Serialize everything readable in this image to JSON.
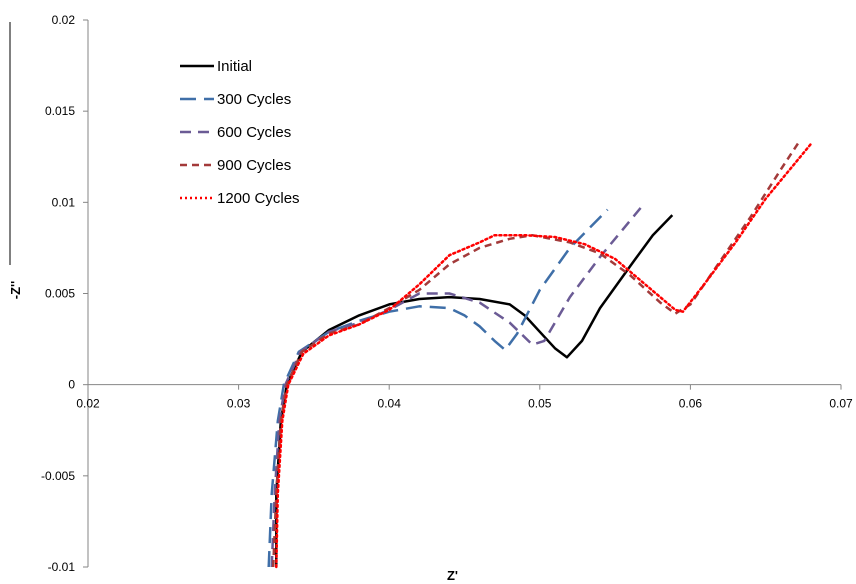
{
  "chart_data": {
    "type": "line",
    "xlabel": "Z'",
    "ylabel": "-Z''",
    "xlim": [
      0.02,
      0.07
    ],
    "ylim": [
      -0.01,
      0.02
    ],
    "x_ticks": [
      "0.02",
      "0.03",
      "0.04",
      "0.05",
      "0.06",
      "0.07"
    ],
    "y_ticks": [
      "0.02",
      "0.015",
      "0.01",
      "0.005",
      "0",
      "-0.005",
      "-0.01"
    ],
    "grid": false,
    "legend_position": "top-left",
    "series": [
      {
        "name": "Initial",
        "color": "#000000",
        "dash": "solid",
        "points": [
          [
            0.0325,
            -0.01
          ],
          [
            0.0325,
            -0.006
          ],
          [
            0.0328,
            -0.002
          ],
          [
            0.0332,
            0.0
          ],
          [
            0.0342,
            0.0018
          ],
          [
            0.036,
            0.003
          ],
          [
            0.038,
            0.0038
          ],
          [
            0.04,
            0.0044
          ],
          [
            0.042,
            0.0047
          ],
          [
            0.044,
            0.0048
          ],
          [
            0.046,
            0.0047
          ],
          [
            0.048,
            0.0044
          ],
          [
            0.049,
            0.0038
          ],
          [
            0.05,
            0.0029
          ],
          [
            0.051,
            0.002
          ],
          [
            0.0518,
            0.0015
          ],
          [
            0.0528,
            0.0024
          ],
          [
            0.054,
            0.0042
          ],
          [
            0.056,
            0.0065
          ],
          [
            0.0575,
            0.0082
          ],
          [
            0.0588,
            0.0093
          ]
        ]
      },
      {
        "name": "300 Cycles",
        "color": "#3f6fa8",
        "dash": "long",
        "points": [
          [
            0.032,
            -0.01
          ],
          [
            0.0322,
            -0.006
          ],
          [
            0.0326,
            -0.002
          ],
          [
            0.033,
            0.0
          ],
          [
            0.034,
            0.0018
          ],
          [
            0.036,
            0.0029
          ],
          [
            0.038,
            0.0035
          ],
          [
            0.04,
            0.004
          ],
          [
            0.042,
            0.0043
          ],
          [
            0.044,
            0.0042
          ],
          [
            0.045,
            0.0038
          ],
          [
            0.046,
            0.0032
          ],
          [
            0.047,
            0.0024
          ],
          [
            0.0477,
            0.0019
          ],
          [
            0.0485,
            0.0028
          ],
          [
            0.05,
            0.0052
          ],
          [
            0.052,
            0.0075
          ],
          [
            0.0545,
            0.0096
          ]
        ]
      },
      {
        "name": "600 Cycles",
        "color": "#6b5b95",
        "dash": "medium",
        "points": [
          [
            0.0322,
            -0.01
          ],
          [
            0.0324,
            -0.006
          ],
          [
            0.0327,
            -0.002
          ],
          [
            0.0331,
            0.0
          ],
          [
            0.0341,
            0.0018
          ],
          [
            0.036,
            0.0029
          ],
          [
            0.038,
            0.0034
          ],
          [
            0.04,
            0.0041
          ],
          [
            0.042,
            0.005
          ],
          [
            0.044,
            0.005
          ],
          [
            0.046,
            0.0045
          ],
          [
            0.048,
            0.0034
          ],
          [
            0.0495,
            0.0022
          ],
          [
            0.0503,
            0.0024
          ],
          [
            0.052,
            0.0048
          ],
          [
            0.054,
            0.007
          ],
          [
            0.0568,
            0.0098
          ]
        ]
      },
      {
        "name": "900 Cycles",
        "color": "#a33a3a",
        "dash": "short",
        "points": [
          [
            0.0323,
            -0.01
          ],
          [
            0.0325,
            -0.006
          ],
          [
            0.0328,
            -0.002
          ],
          [
            0.0332,
            0.0
          ],
          [
            0.0342,
            0.0018
          ],
          [
            0.036,
            0.0028
          ],
          [
            0.038,
            0.0033
          ],
          [
            0.04,
            0.0042
          ],
          [
            0.042,
            0.0052
          ],
          [
            0.044,
            0.0066
          ],
          [
            0.046,
            0.0075
          ],
          [
            0.048,
            0.008
          ],
          [
            0.0495,
            0.0082
          ],
          [
            0.052,
            0.0078
          ],
          [
            0.054,
            0.0072
          ],
          [
            0.056,
            0.006
          ],
          [
            0.058,
            0.0045
          ],
          [
            0.059,
            0.0039
          ],
          [
            0.06,
            0.0044
          ],
          [
            0.062,
            0.0068
          ],
          [
            0.064,
            0.0092
          ],
          [
            0.066,
            0.0118
          ],
          [
            0.0672,
            0.0133
          ]
        ]
      },
      {
        "name": "1200 Cycles",
        "color": "#ff0000",
        "dash": "dotted",
        "points": [
          [
            0.0325,
            -0.01
          ],
          [
            0.0326,
            -0.006
          ],
          [
            0.0329,
            -0.002
          ],
          [
            0.0333,
            0.0
          ],
          [
            0.0343,
            0.0017
          ],
          [
            0.036,
            0.0027
          ],
          [
            0.038,
            0.0033
          ],
          [
            0.04,
            0.0041
          ],
          [
            0.042,
            0.0055
          ],
          [
            0.044,
            0.0071
          ],
          [
            0.046,
            0.0078
          ],
          [
            0.047,
            0.0082
          ],
          [
            0.049,
            0.0082
          ],
          [
            0.051,
            0.0081
          ],
          [
            0.053,
            0.0077
          ],
          [
            0.055,
            0.0069
          ],
          [
            0.057,
            0.0055
          ],
          [
            0.059,
            0.0041
          ],
          [
            0.0595,
            0.004
          ],
          [
            0.061,
            0.0056
          ],
          [
            0.063,
            0.0078
          ],
          [
            0.065,
            0.0102
          ],
          [
            0.068,
            0.0132
          ]
        ]
      }
    ]
  }
}
